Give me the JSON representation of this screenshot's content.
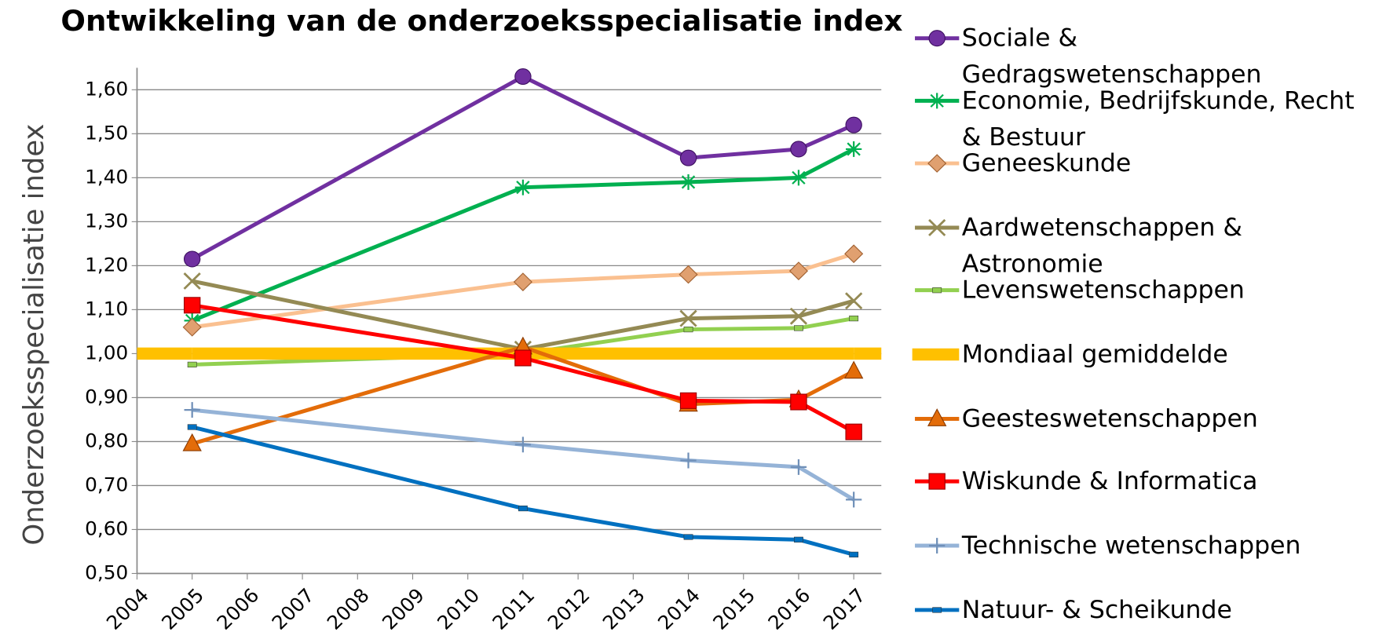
{
  "chart_data": {
    "type": "line",
    "title": "Ontwikkeling van de onderzoeksspecialisatie index",
    "ylabel": "Onderzoeksspecialisatie index",
    "x": [
      2005,
      2011,
      2014,
      2016,
      2017
    ],
    "xlim": [
      2004,
      2017.5
    ],
    "xticks": [
      2004,
      2005,
      2006,
      2007,
      2008,
      2009,
      2010,
      2011,
      2012,
      2013,
      2014,
      2015,
      2016,
      2017
    ],
    "ylim": [
      0.5,
      1.65
    ],
    "yticks": [
      {
        "value": 0.5,
        "label": "0,50"
      },
      {
        "value": 0.6,
        "label": "0,60"
      },
      {
        "value": 0.7,
        "label": "0,70"
      },
      {
        "value": 0.8,
        "label": "0,80"
      },
      {
        "value": 0.9,
        "label": "0,90"
      },
      {
        "value": 1.0,
        "label": "1,00"
      },
      {
        "value": 1.1,
        "label": "1,10"
      },
      {
        "value": 1.2,
        "label": "1,20"
      },
      {
        "value": 1.3,
        "label": "1,30"
      },
      {
        "value": 1.4,
        "label": "1,40"
      },
      {
        "value": 1.5,
        "label": "1,50"
      },
      {
        "value": 1.6,
        "label": "1,60"
      }
    ],
    "grid": true,
    "legend": "right",
    "series": [
      {
        "name": "Sociale & Gedragswetenschappen",
        "color": "#7030a0",
        "marker": "circle",
        "values": [
          1.215,
          1.63,
          1.445,
          1.465,
          1.52
        ]
      },
      {
        "name": "Economie, Bedrijfskunde, Recht & Bestuur",
        "color": "#00b050",
        "marker": "star",
        "values": [
          1.075,
          1.378,
          1.39,
          1.4,
          1.465
        ]
      },
      {
        "name": "Geneeskunde",
        "color": "#fac090",
        "marker": "diamond",
        "values": [
          1.06,
          1.163,
          1.18,
          1.188,
          1.227
        ]
      },
      {
        "name": "Aardwetenschappen & Astronomie",
        "color": "#948a54",
        "marker": "x",
        "values": [
          1.165,
          1.01,
          1.08,
          1.085,
          1.12
        ]
      },
      {
        "name": "Levenswetenschappen",
        "color": "#92d050",
        "marker": "dash",
        "values": [
          0.975,
          1.0,
          1.055,
          1.058,
          1.08
        ]
      },
      {
        "name": "Mondiaal gemiddelde",
        "color": "#ffc000",
        "marker": "band",
        "values": [
          1.0,
          1.0,
          1.0,
          1.0,
          1.0
        ]
      },
      {
        "name": "Geesteswetenschappen",
        "color": "#e36c09",
        "marker": "triangle",
        "values": [
          0.795,
          1.015,
          0.885,
          0.895,
          0.96
        ]
      },
      {
        "name": "Wiskunde & Informatica",
        "color": "#ff0000",
        "marker": "square",
        "values": [
          1.11,
          0.99,
          0.893,
          0.89,
          0.822
        ]
      },
      {
        "name": "Technische wetenschappen",
        "color": "#95b3d7",
        "marker": "plus",
        "values": [
          0.872,
          0.793,
          0.757,
          0.742,
          0.668
        ]
      },
      {
        "name": "Natuur- & Scheikunde",
        "color": "#0070c0",
        "marker": "dash",
        "values": [
          0.833,
          0.648,
          0.583,
          0.577,
          0.543
        ]
      }
    ]
  }
}
